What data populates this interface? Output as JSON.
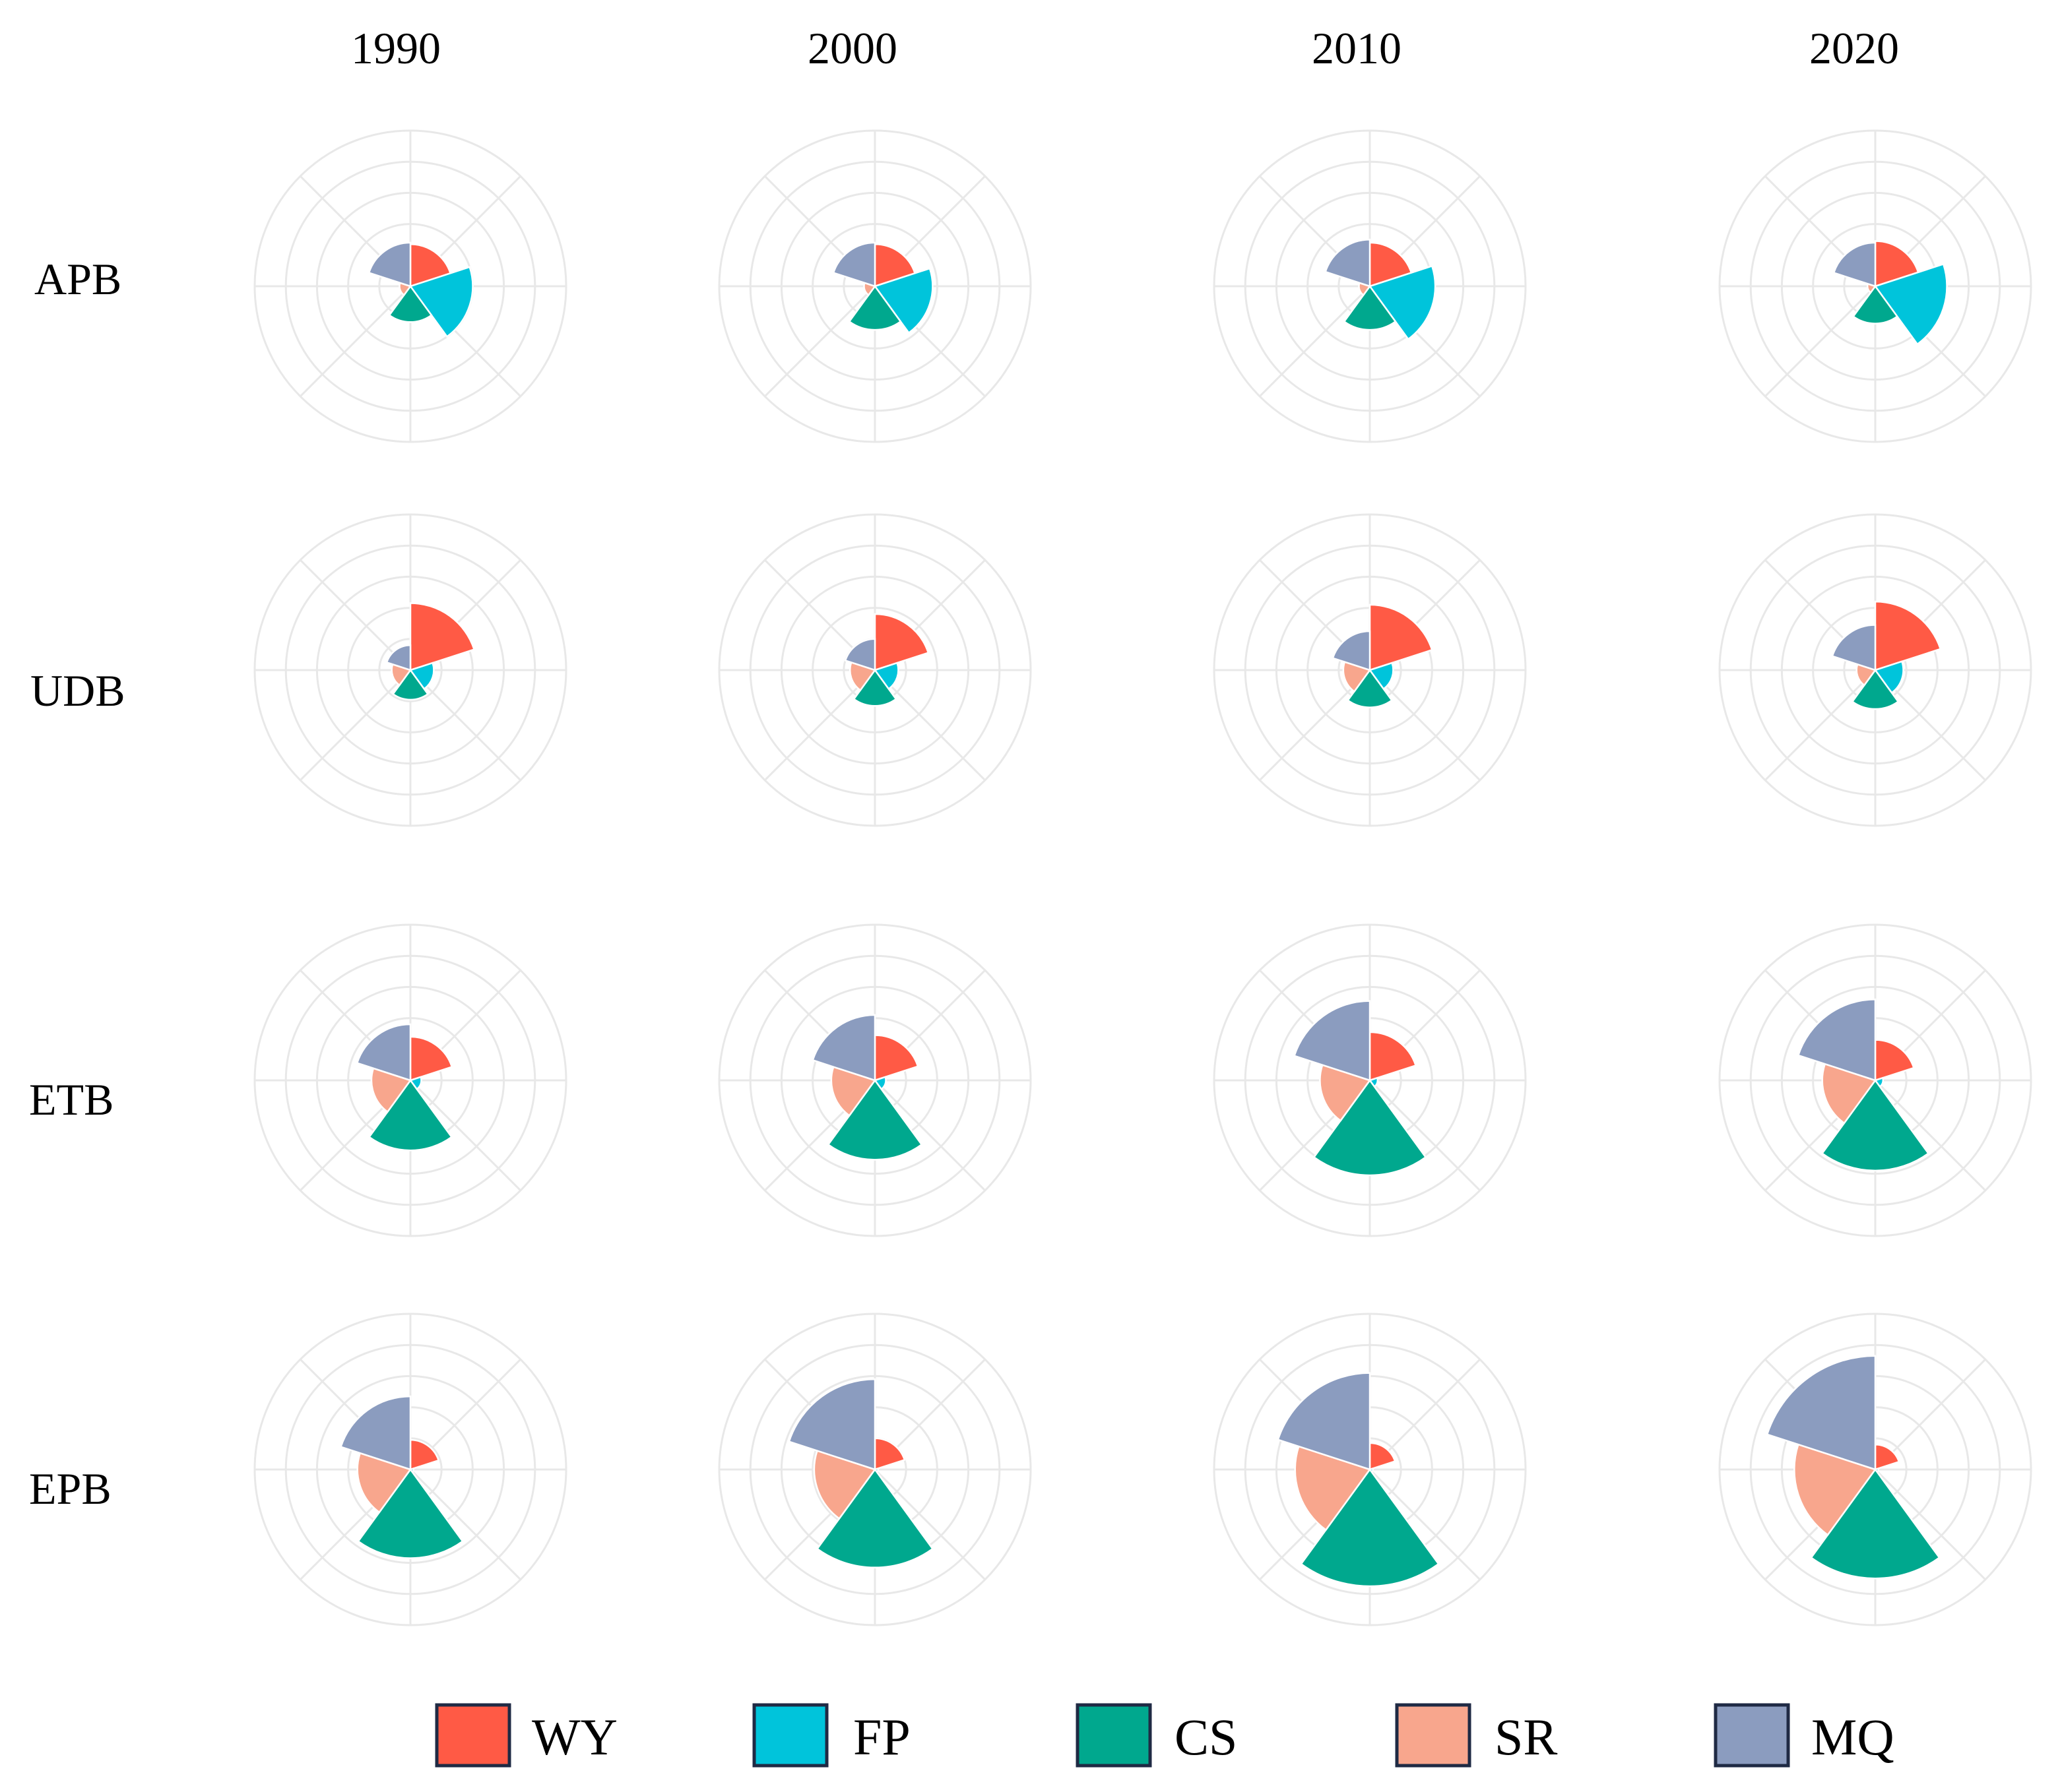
{
  "chart_data": {
    "type": "polar-area",
    "title": "",
    "years": [
      "1990",
      "2000",
      "2010",
      "2020"
    ],
    "zones": [
      "APB",
      "UDB",
      "ETB",
      "EPB"
    ],
    "services": [
      "WY",
      "FP",
      "CS",
      "SR",
      "MQ"
    ],
    "legend": [
      {
        "key": "WY",
        "label": "WY",
        "color": "#ff5a45"
      },
      {
        "key": "FP",
        "label": "FP",
        "color": "#00c4db"
      },
      {
        "key": "CS",
        "label": "CS",
        "color": "#00a88e"
      },
      {
        "key": "SR",
        "label": "SR",
        "color": "#f8a68d"
      },
      {
        "key": "MQ",
        "label": "MQ",
        "color": "#8b9cbf"
      }
    ],
    "legend_position": "bottom",
    "radial_range": [
      0,
      1
    ],
    "grid_rings": [
      0.2,
      0.4,
      0.6,
      0.8,
      1.0
    ],
    "values": {
      "APB": {
        "1990": {
          "WY": 0.27,
          "FP": 0.4,
          "CS": 0.23,
          "SR": 0.07,
          "MQ": 0.28
        },
        "2000": {
          "WY": 0.27,
          "FP": 0.37,
          "CS": 0.28,
          "SR": 0.07,
          "MQ": 0.28
        },
        "2010": {
          "WY": 0.28,
          "FP": 0.42,
          "CS": 0.28,
          "SR": 0.07,
          "MQ": 0.3
        },
        "2020": {
          "WY": 0.29,
          "FP": 0.46,
          "CS": 0.24,
          "SR": 0.05,
          "MQ": 0.28
        }
      },
      "UDB": {
        "1990": {
          "WY": 0.43,
          "FP": 0.15,
          "CS": 0.19,
          "SR": 0.12,
          "MQ": 0.16
        },
        "2000": {
          "WY": 0.36,
          "FP": 0.15,
          "CS": 0.23,
          "SR": 0.16,
          "MQ": 0.2
        },
        "2010": {
          "WY": 0.42,
          "FP": 0.15,
          "CS": 0.24,
          "SR": 0.17,
          "MQ": 0.25
        },
        "2020": {
          "WY": 0.44,
          "FP": 0.18,
          "CS": 0.25,
          "SR": 0.12,
          "MQ": 0.29
        }
      },
      "ETB": {
        "1990": {
          "WY": 0.28,
          "FP": 0.07,
          "CS": 0.45,
          "SR": 0.25,
          "MQ": 0.36
        },
        "2000": {
          "WY": 0.29,
          "FP": 0.07,
          "CS": 0.51,
          "SR": 0.28,
          "MQ": 0.42
        },
        "2010": {
          "WY": 0.31,
          "FP": 0.05,
          "CS": 0.61,
          "SR": 0.32,
          "MQ": 0.51
        },
        "2020": {
          "WY": 0.26,
          "FP": 0.05,
          "CS": 0.58,
          "SR": 0.34,
          "MQ": 0.52
        }
      },
      "EPB": {
        "1990": {
          "WY": 0.19,
          "FP": 0.02,
          "CS": 0.57,
          "SR": 0.34,
          "MQ": 0.47
        },
        "2000": {
          "WY": 0.2,
          "FP": 0.02,
          "CS": 0.63,
          "SR": 0.39,
          "MQ": 0.58
        },
        "2010": {
          "WY": 0.17,
          "FP": 0.02,
          "CS": 0.75,
          "SR": 0.48,
          "MQ": 0.62
        },
        "2020": {
          "WY": 0.16,
          "FP": 0.02,
          "CS": 0.7,
          "SR": 0.52,
          "MQ": 0.73
        }
      }
    }
  }
}
